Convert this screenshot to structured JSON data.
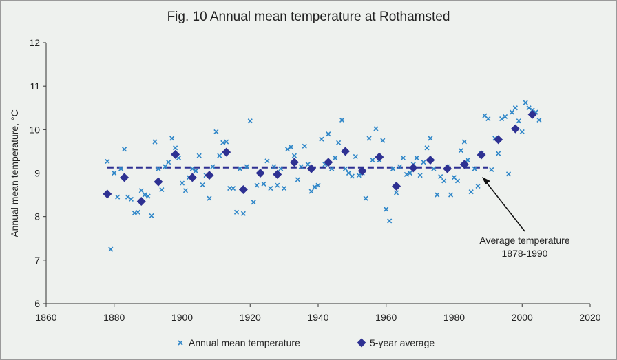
{
  "chart_data": {
    "type": "scatter",
    "title": "Fig. 10  Annual mean temperature at Rothamsted",
    "y_label": "Annual mean temperature, °C",
    "xlim": [
      1860,
      2020
    ],
    "xticks": [
      1860,
      1880,
      1900,
      1920,
      1940,
      1960,
      1980,
      2000,
      2020
    ],
    "ylim": [
      6,
      12
    ],
    "yticks": [
      6,
      7,
      8,
      9,
      10,
      11,
      12
    ],
    "series": [
      {
        "name": "Annual mean temperature",
        "color": "#2e86c8",
        "marker": "x",
        "x": [
          1878,
          1879,
          1880,
          1881,
          1882,
          1883,
          1884,
          1885,
          1886,
          1887,
          1888,
          1889,
          1890,
          1891,
          1892,
          1893,
          1894,
          1895,
          1896,
          1897,
          1898,
          1899,
          1900,
          1901,
          1902,
          1903,
          1904,
          1905,
          1906,
          1907,
          1908,
          1909,
          1910,
          1911,
          1912,
          1913,
          1914,
          1915,
          1916,
          1917,
          1918,
          1919,
          1920,
          1921,
          1922,
          1923,
          1924,
          1925,
          1926,
          1927,
          1928,
          1929,
          1930,
          1931,
          1932,
          1933,
          1934,
          1935,
          1936,
          1937,
          1938,
          1939,
          1940,
          1941,
          1942,
          1943,
          1944,
          1945,
          1946,
          1947,
          1948,
          1949,
          1950,
          1951,
          1952,
          1953,
          1954,
          1955,
          1956,
          1957,
          1958,
          1959,
          1960,
          1961,
          1962,
          1963,
          1964,
          1965,
          1966,
          1967,
          1968,
          1969,
          1970,
          1971,
          1972,
          1973,
          1974,
          1975,
          1976,
          1977,
          1978,
          1979,
          1980,
          1981,
          1982,
          1983,
          1984,
          1985,
          1986,
          1987,
          1988,
          1989,
          1990,
          1991,
          1992,
          1993,
          1994,
          1995,
          1996,
          1997,
          1998,
          1999,
          2000,
          2001,
          2002,
          2003,
          2004,
          2005
        ],
        "values": [
          9.27,
          7.25,
          9.0,
          8.45,
          9.1,
          9.55,
          8.45,
          8.4,
          8.08,
          8.1,
          8.6,
          8.5,
          8.47,
          8.02,
          9.72,
          9.1,
          8.62,
          9.15,
          9.25,
          9.8,
          9.58,
          9.35,
          8.77,
          8.6,
          8.9,
          9.1,
          9.05,
          9.4,
          8.73,
          8.95,
          8.42,
          9.15,
          9.95,
          9.4,
          9.7,
          9.72,
          8.65,
          8.65,
          8.1,
          9.1,
          8.07,
          9.15,
          10.2,
          8.33,
          8.72,
          9.0,
          8.75,
          9.28,
          8.65,
          9.15,
          8.72,
          9.1,
          8.65,
          9.55,
          9.6,
          9.4,
          8.85,
          9.15,
          9.62,
          9.2,
          8.58,
          8.68,
          8.72,
          9.78,
          9.2,
          9.9,
          9.1,
          9.35,
          9.7,
          10.22,
          9.1,
          9.0,
          8.93,
          9.38,
          8.95,
          9.0,
          8.42,
          9.8,
          9.3,
          10.02,
          9.3,
          9.75,
          8.17,
          7.9,
          9.1,
          8.55,
          9.15,
          9.35,
          8.97,
          9.0,
          9.2,
          9.35,
          8.95,
          9.25,
          9.58,
          9.8,
          9.1,
          8.5,
          8.92,
          8.82,
          9.15,
          8.5,
          8.9,
          8.82,
          9.52,
          9.72,
          9.3,
          8.57,
          9.1,
          8.7,
          9.45,
          10.32,
          10.25,
          9.08,
          9.8,
          9.45,
          10.25,
          10.3,
          8.98,
          10.4,
          10.5,
          10.2,
          9.95,
          10.62,
          10.5,
          10.45,
          10.4,
          10.22
        ]
      },
      {
        "name": "5-year average",
        "color": "#2e3192",
        "marker": "diamond",
        "x": [
          1878,
          1883,
          1888,
          1893,
          1898,
          1903,
          1908,
          1913,
          1918,
          1923,
          1928,
          1933,
          1938,
          1943,
          1948,
          1953,
          1958,
          1963,
          1968,
          1973,
          1978,
          1983,
          1988,
          1993,
          1998,
          2003
        ],
        "values": [
          8.52,
          8.9,
          8.35,
          8.8,
          9.43,
          8.9,
          8.95,
          9.48,
          8.62,
          9.0,
          8.97,
          9.25,
          9.1,
          9.25,
          9.5,
          9.05,
          9.37,
          8.7,
          9.12,
          9.3,
          9.1,
          9.2,
          9.42,
          9.77,
          10.02,
          10.35
        ]
      }
    ],
    "average_line": {
      "value": 9.13,
      "x": [
        1878,
        1990
      ],
      "color": "#2e3192"
    },
    "annotation": [
      "Average temperature",
      "1878-1990"
    ]
  }
}
